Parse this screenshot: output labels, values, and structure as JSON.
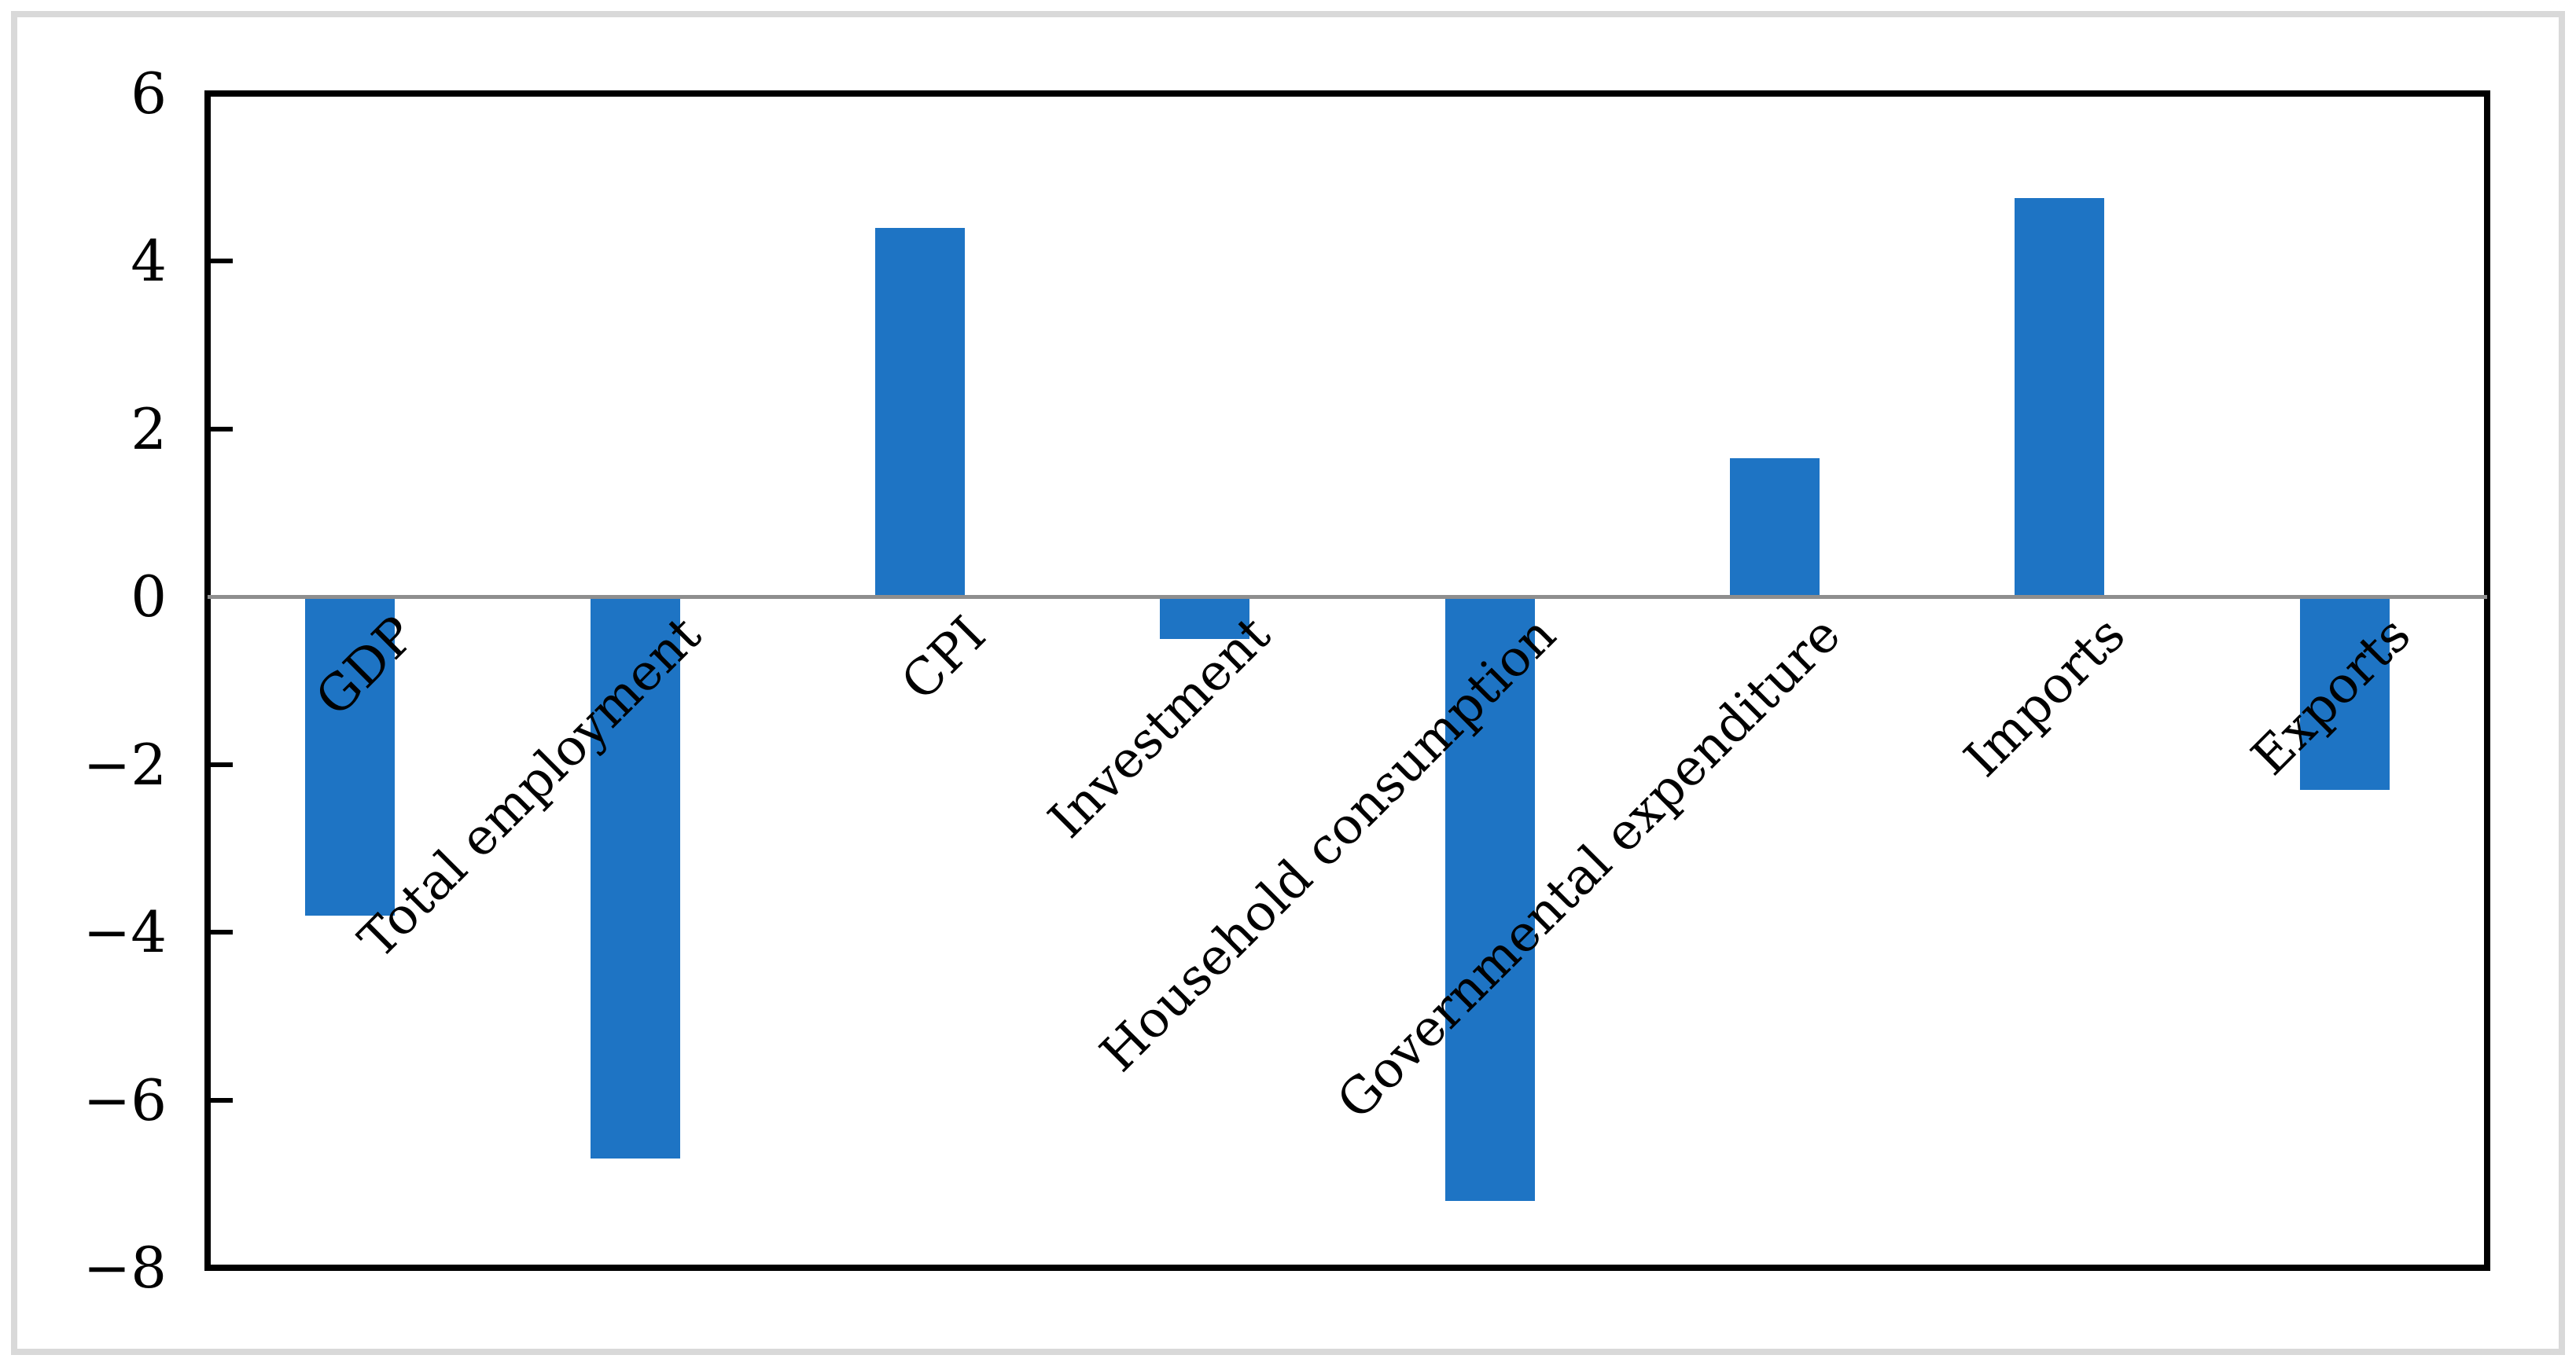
{
  "chart_data": {
    "type": "bar",
    "title": "",
    "xlabel": "",
    "ylabel": "",
    "categories": [
      "GDP",
      "Total employment",
      "CPI",
      "Investment",
      "Household consumption",
      "Governmental expenditure",
      "Imports",
      "Exports"
    ],
    "values": [
      -3.8,
      -6.7,
      4.4,
      -0.5,
      -7.2,
      1.65,
      4.75,
      -2.3
    ],
    "ylim": [
      -8,
      6
    ],
    "yticks": [
      6,
      4,
      2,
      0,
      -2,
      -4,
      -6,
      -8
    ],
    "ytick_labels": [
      "6",
      "4",
      "2",
      "0",
      "−2",
      "−4",
      "−6",
      "−8"
    ],
    "grid": "off",
    "legend": "none",
    "bar_color": "#1E74C4",
    "zero_line_color": "#8E8E8E",
    "frame_color": "#000000",
    "outer_border_color": "#D9D9D9",
    "label_rotation_deg": 45
  }
}
